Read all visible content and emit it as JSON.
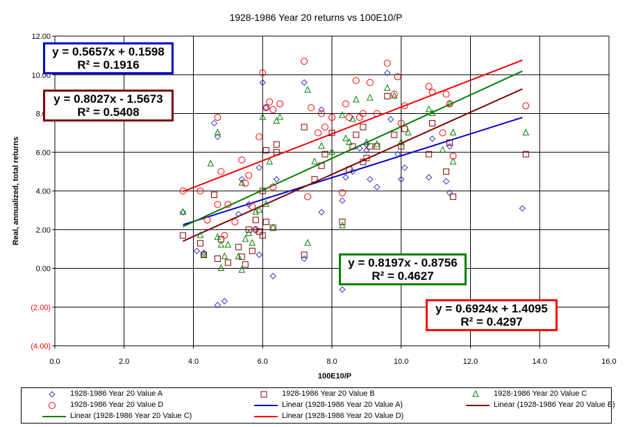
{
  "chart_data": {
    "type": "scatter",
    "title": "1928-1986 Year 20 returns vs 100E10/P",
    "xlabel": "100E10/P",
    "ylabel": "Real, annualized, total returns",
    "xlim": [
      0,
      16
    ],
    "ylim": [
      -4,
      12
    ],
    "x_ticks": [
      "0.0",
      "2.0",
      "4.0",
      "6.0",
      "8.0",
      "10.0",
      "12.0",
      "14.0",
      "16.0"
    ],
    "y_ticks": [
      "(4.00)",
      "(2.00)",
      "0.00",
      "2.00",
      "4.00",
      "6.00",
      "8.00",
      "10.00",
      "12.00"
    ],
    "grid": true,
    "legend_position": "bottom",
    "series": [
      {
        "name": "1928-1986 Year 20 Value A",
        "marker": "diamond",
        "color": "#3333cc",
        "points": [
          [
            3.7,
            2.9
          ],
          [
            4.1,
            0.9
          ],
          [
            4.3,
            0.8
          ],
          [
            4.6,
            7.5
          ],
          [
            4.7,
            6.8
          ],
          [
            4.7,
            -1.9
          ],
          [
            4.9,
            -1.7
          ],
          [
            5.3,
            2.8
          ],
          [
            5.4,
            4.6
          ],
          [
            5.6,
            3.3
          ],
          [
            5.8,
            2.0
          ],
          [
            5.9,
            0.7
          ],
          [
            5.9,
            5.2
          ],
          [
            6.0,
            9.6
          ],
          [
            6.1,
            8.3
          ],
          [
            6.3,
            -0.4
          ],
          [
            6.4,
            4.6
          ],
          [
            7.2,
            0.5
          ],
          [
            7.2,
            9.6
          ],
          [
            7.7,
            8.2
          ],
          [
            7.7,
            2.9
          ],
          [
            8.3,
            -1.1
          ],
          [
            8.3,
            3.5
          ],
          [
            8.4,
            4.7
          ],
          [
            8.6,
            5.0
          ],
          [
            8.8,
            6.2
          ],
          [
            9.0,
            6.1
          ],
          [
            9.0,
            6.4
          ],
          [
            9.1,
            4.6
          ],
          [
            9.3,
            4.2
          ],
          [
            9.6,
            10.1
          ],
          [
            9.7,
            7.7
          ],
          [
            9.9,
            5.9
          ],
          [
            10.0,
            4.6
          ],
          [
            10.1,
            5.2
          ],
          [
            10.8,
            4.7
          ],
          [
            10.9,
            6.7
          ],
          [
            11.3,
            4.5
          ],
          [
            11.4,
            3.9
          ],
          [
            11.4,
            6.3
          ],
          [
            13.5,
            3.1
          ]
        ]
      },
      {
        "name": "1928-1986 Year 20 Value B",
        "marker": "square",
        "color": "#800000",
        "points": [
          [
            3.7,
            1.7
          ],
          [
            4.2,
            1.3
          ],
          [
            4.3,
            0.7
          ],
          [
            4.6,
            3.8
          ],
          [
            4.7,
            0.5
          ],
          [
            4.8,
            1.5
          ],
          [
            5.0,
            0.3
          ],
          [
            5.3,
            1.1
          ],
          [
            5.4,
            0.6
          ],
          [
            5.5,
            0.2
          ],
          [
            5.6,
            2.0
          ],
          [
            5.7,
            0.9
          ],
          [
            5.8,
            2.5
          ],
          [
            5.9,
            1.9
          ],
          [
            6.0,
            4.0
          ],
          [
            6.0,
            1.7
          ],
          [
            6.1,
            2.4
          ],
          [
            6.1,
            6.1
          ],
          [
            6.3,
            2.1
          ],
          [
            6.4,
            6.0
          ],
          [
            6.4,
            6.4
          ],
          [
            7.2,
            7.3
          ],
          [
            7.2,
            0.7
          ],
          [
            7.5,
            4.6
          ],
          [
            7.7,
            5.3
          ],
          [
            7.8,
            5.9
          ],
          [
            8.0,
            7.0
          ],
          [
            8.3,
            2.4
          ],
          [
            8.5,
            5.1
          ],
          [
            8.6,
            6.3
          ],
          [
            8.7,
            6.9
          ],
          [
            8.9,
            7.3
          ],
          [
            8.9,
            5.5
          ],
          [
            9.0,
            5.7
          ],
          [
            9.1,
            6.3
          ],
          [
            9.3,
            6.3
          ],
          [
            9.6,
            8.9
          ],
          [
            9.8,
            6.9
          ],
          [
            10.0,
            6.3
          ],
          [
            10.1,
            7.2
          ],
          [
            10.8,
            5.9
          ],
          [
            10.9,
            7.5
          ],
          [
            11.3,
            5.0
          ],
          [
            11.4,
            6.5
          ],
          [
            11.5,
            3.7
          ],
          [
            13.6,
            5.9
          ]
        ]
      },
      {
        "name": "1928-1986 Year 20 Value C",
        "marker": "triangle",
        "color": "#008000",
        "points": [
          [
            3.7,
            2.9
          ],
          [
            4.2,
            1.7
          ],
          [
            4.3,
            0.7
          ],
          [
            4.5,
            5.4
          ],
          [
            4.7,
            7.0
          ],
          [
            4.7,
            1.6
          ],
          [
            4.8,
            1.2
          ],
          [
            4.8,
            0.0
          ],
          [
            4.9,
            0.6
          ],
          [
            5.0,
            1.2
          ],
          [
            5.3,
            0.6
          ],
          [
            5.4,
            4.4
          ],
          [
            5.4,
            -0.1
          ],
          [
            5.5,
            1.5
          ],
          [
            5.6,
            1.8
          ],
          [
            5.7,
            1.3
          ],
          [
            5.8,
            2.9
          ],
          [
            5.9,
            3.0
          ],
          [
            6.0,
            7.8
          ],
          [
            6.1,
            3.3
          ],
          [
            6.2,
            5.5
          ],
          [
            6.3,
            2.1
          ],
          [
            6.4,
            7.6
          ],
          [
            6.5,
            7.8
          ],
          [
            7.3,
            9.2
          ],
          [
            7.3,
            1.3
          ],
          [
            7.5,
            5.5
          ],
          [
            7.7,
            6.3
          ],
          [
            8.0,
            6.0
          ],
          [
            8.3,
            2.2
          ],
          [
            8.3,
            7.9
          ],
          [
            8.4,
            6.7
          ],
          [
            8.5,
            6.5
          ],
          [
            8.6,
            7.7
          ],
          [
            8.7,
            8.7
          ],
          [
            9.0,
            6.5
          ],
          [
            9.1,
            8.8
          ],
          [
            9.3,
            6.4
          ],
          [
            9.6,
            9.3
          ],
          [
            9.8,
            8.9
          ],
          [
            10.0,
            6.5
          ],
          [
            10.2,
            7.0
          ],
          [
            10.8,
            8.2
          ],
          [
            10.9,
            8.0
          ],
          [
            11.2,
            6.1
          ],
          [
            11.4,
            8.5
          ],
          [
            11.5,
            5.5
          ],
          [
            11.5,
            7.0
          ],
          [
            13.6,
            7.0
          ]
        ]
      },
      {
        "name": "1928-1986 Year 20 Value D",
        "marker": "circle",
        "color": "#ff0000",
        "points": [
          [
            3.7,
            4.0
          ],
          [
            4.2,
            4.0
          ],
          [
            4.4,
            2.5
          ],
          [
            4.7,
            7.8
          ],
          [
            4.7,
            3.3
          ],
          [
            4.8,
            5.0
          ],
          [
            4.9,
            1.7
          ],
          [
            5.0,
            3.3
          ],
          [
            5.2,
            2.4
          ],
          [
            5.4,
            5.6
          ],
          [
            5.5,
            4.4
          ],
          [
            5.6,
            4.8
          ],
          [
            5.7,
            3.2
          ],
          [
            5.8,
            2.0
          ],
          [
            5.9,
            6.8
          ],
          [
            6.0,
            10.1
          ],
          [
            6.1,
            8.3
          ],
          [
            6.2,
            8.6
          ],
          [
            6.3,
            4.2
          ],
          [
            6.3,
            8.2
          ],
          [
            6.5,
            8.5
          ],
          [
            7.2,
            10.7
          ],
          [
            7.3,
            3.7
          ],
          [
            7.4,
            8.3
          ],
          [
            7.6,
            7.0
          ],
          [
            7.7,
            8.0
          ],
          [
            7.8,
            7.3
          ],
          [
            8.0,
            7.8
          ],
          [
            8.3,
            3.9
          ],
          [
            8.4,
            8.5
          ],
          [
            8.5,
            7.8
          ],
          [
            8.7,
            9.7
          ],
          [
            8.8,
            7.8
          ],
          [
            8.9,
            8.0
          ],
          [
            9.1,
            9.6
          ],
          [
            9.3,
            8.0
          ],
          [
            9.6,
            10.6
          ],
          [
            9.8,
            9.0
          ],
          [
            9.9,
            9.9
          ],
          [
            10.0,
            7.5
          ],
          [
            10.1,
            8.4
          ],
          [
            10.8,
            9.4
          ],
          [
            10.9,
            9.1
          ],
          [
            11.2,
            7.0
          ],
          [
            11.3,
            9.0
          ],
          [
            11.4,
            8.5
          ],
          [
            11.5,
            5.8
          ],
          [
            13.6,
            8.4
          ]
        ]
      }
    ],
    "trendlines": [
      {
        "name": "Linear (1928-1986 Year 20 Value A)",
        "color": "#0000cc",
        "slope": 0.5657,
        "intercept": 0.1598,
        "x_range": [
          3.7,
          13.5
        ],
        "equation": "y = 0.5657x + 0.1598",
        "r2": "R² = 0.1916"
      },
      {
        "name": "Linear (1928-1986 Year 20 Value B)",
        "color": "#800000",
        "slope": 0.8027,
        "intercept": -1.5673,
        "x_range": [
          3.7,
          13.5
        ],
        "equation": "y = 0.8027x - 1.5673",
        "r2": "R² = 0.5408"
      },
      {
        "name": "Linear (1928-1986 Year 20 Value C)",
        "color": "#008000",
        "slope": 0.8197,
        "intercept": -0.8756,
        "x_range": [
          3.7,
          13.5
        ],
        "equation": "y = 0.8197x - 0.8756",
        "r2": "R² = 0.4627"
      },
      {
        "name": "Linear (1928-1986 Year 20 Value D)",
        "color": "#ff0000",
        "slope": 0.6924,
        "intercept": 1.4095,
        "x_range": [
          3.7,
          13.5
        ],
        "equation": "y = 0.6924x + 1.4095",
        "r2": "R² = 0.4297"
      }
    ]
  }
}
